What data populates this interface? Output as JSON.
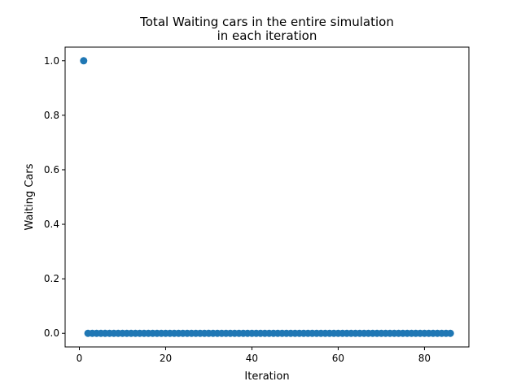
{
  "chart_data": {
    "type": "scatter",
    "title_line1": "Total Waiting cars in the entire simulation",
    "title_line2": "in each iteration",
    "xlabel": "Iteration",
    "ylabel": "Waiting Cars",
    "xlim": [
      -3.3,
      90.3
    ],
    "ylim": [
      -0.05,
      1.05
    ],
    "xticks": [
      0,
      20,
      40,
      60,
      80
    ],
    "xtick_labels": [
      "0",
      "20",
      "40",
      "60",
      "80"
    ],
    "yticks": [
      0.0,
      0.2,
      0.4,
      0.6,
      0.8,
      1.0
    ],
    "ytick_labels": [
      "0.0",
      "0.2",
      "0.4",
      "0.6",
      "0.8",
      "1.0"
    ],
    "grid": false,
    "marker_color": "#1f77b4",
    "x": [
      1,
      2,
      3,
      4,
      5,
      6,
      7,
      8,
      9,
      10,
      11,
      12,
      13,
      14,
      15,
      16,
      17,
      18,
      19,
      20,
      21,
      22,
      23,
      24,
      25,
      26,
      27,
      28,
      29,
      30,
      31,
      32,
      33,
      34,
      35,
      36,
      37,
      38,
      39,
      40,
      41,
      42,
      43,
      44,
      45,
      46,
      47,
      48,
      49,
      50,
      51,
      52,
      53,
      54,
      55,
      56,
      57,
      58,
      59,
      60,
      61,
      62,
      63,
      64,
      65,
      66,
      67,
      68,
      69,
      70,
      71,
      72,
      73,
      74,
      75,
      76,
      77,
      78,
      79,
      80,
      81,
      82,
      83,
      84,
      85,
      86
    ],
    "y": [
      1,
      0,
      0,
      0,
      0,
      0,
      0,
      0,
      0,
      0,
      0,
      0,
      0,
      0,
      0,
      0,
      0,
      0,
      0,
      0,
      0,
      0,
      0,
      0,
      0,
      0,
      0,
      0,
      0,
      0,
      0,
      0,
      0,
      0,
      0,
      0,
      0,
      0,
      0,
      0,
      0,
      0,
      0,
      0,
      0,
      0,
      0,
      0,
      0,
      0,
      0,
      0,
      0,
      0,
      0,
      0,
      0,
      0,
      0,
      0,
      0,
      0,
      0,
      0,
      0,
      0,
      0,
      0,
      0,
      0,
      0,
      0,
      0,
      0,
      0,
      0,
      0,
      0,
      0,
      0,
      0,
      0,
      0,
      0,
      0,
      0
    ]
  }
}
